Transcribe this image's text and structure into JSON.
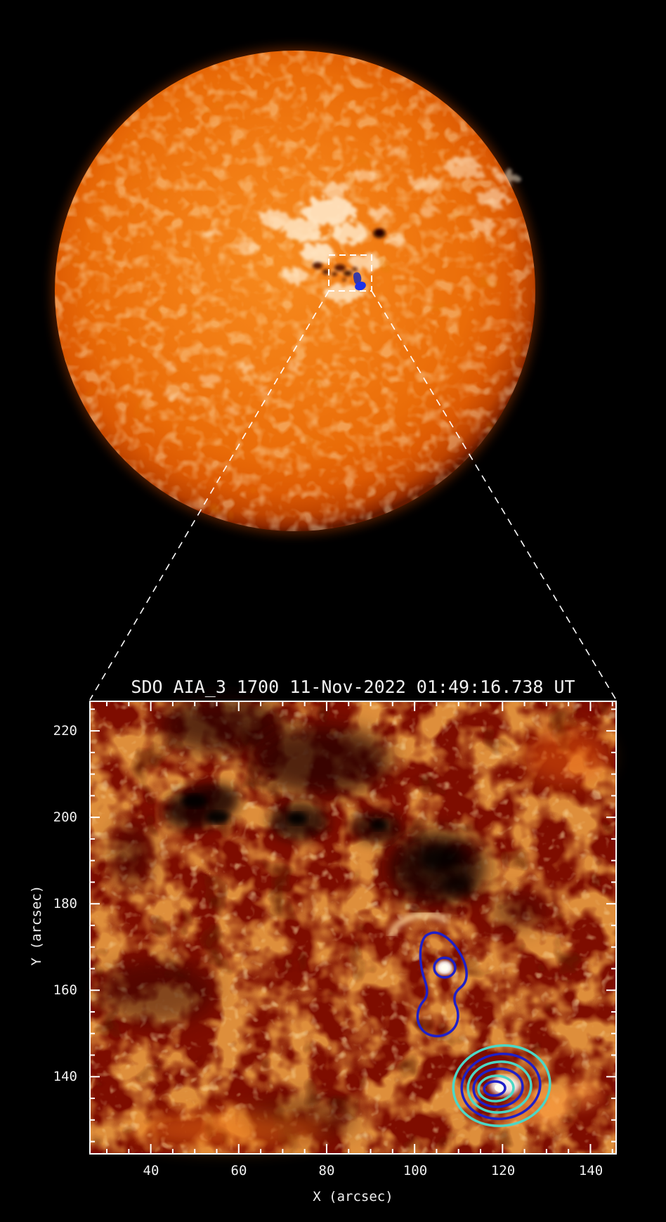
{
  "page": {
    "background": "#000000"
  },
  "full_disk": {
    "name": "SDO AIA 1700 full-disk solar image",
    "roi_box": {
      "color": "#ffffff",
      "style": "dashed"
    },
    "markers": {
      "blue_dot_color": "#1d32e8"
    },
    "palette": {
      "core": "#f27a12",
      "limb": "#8a2500",
      "plage": "#ffedd2",
      "sunspot": "#3c0c00"
    }
  },
  "zoom_panel": {
    "title": "SDO AIA_3 1700 11-Nov-2022 01:49:16.738 UT",
    "xlabel": "X (arcsec)",
    "ylabel": "Y (arcsec)",
    "x_tick_labels": [
      "40",
      "60",
      "80",
      "100",
      "120",
      "140"
    ],
    "y_tick_labels": [
      "220",
      "200",
      "180",
      "160",
      "140"
    ],
    "contour_colors": {
      "blue": "#1f1fc8",
      "cyan": "#4cd7c5"
    }
  },
  "chart_data": {
    "type": "heatmap",
    "title": "SDO AIA_3 1700 11-Nov-2022 01:49:16.738 UT",
    "xlabel": "X (arcsec)",
    "ylabel": "Y (arcsec)",
    "xlim": [
      26,
      146
    ],
    "ylim": [
      122,
      227
    ],
    "x_ticks": [
      40,
      60,
      80,
      100,
      120,
      140
    ],
    "y_ticks": [
      140,
      160,
      180,
      200,
      220
    ],
    "minor_tick_step": 5,
    "grid": false,
    "legend": false,
    "description": "Zoomed SDO/AIA 1700 intensity map of an active region with blue/cyan source contours overlaid; cut-out region marked by dashed box on full solar disk above.",
    "annotations": [
      {
        "type": "contour",
        "color": "#1f1fc8",
        "x_arcsec": 106,
        "y_arcsec": 165,
        "note": "single blue contour with inner core ring around compact bright point"
      },
      {
        "type": "nested_contours",
        "colors": [
          "#4cd7c5",
          "#1f1fc8"
        ],
        "levels": 6,
        "x_arcsec": 120,
        "y_arcsec": 137,
        "note": "nested elliptical cyan/blue contours over bright source"
      },
      {
        "type": "roi_link",
        "note": "dashed white box on full disk connected by dashed lines to zoom panel corners"
      }
    ]
  }
}
